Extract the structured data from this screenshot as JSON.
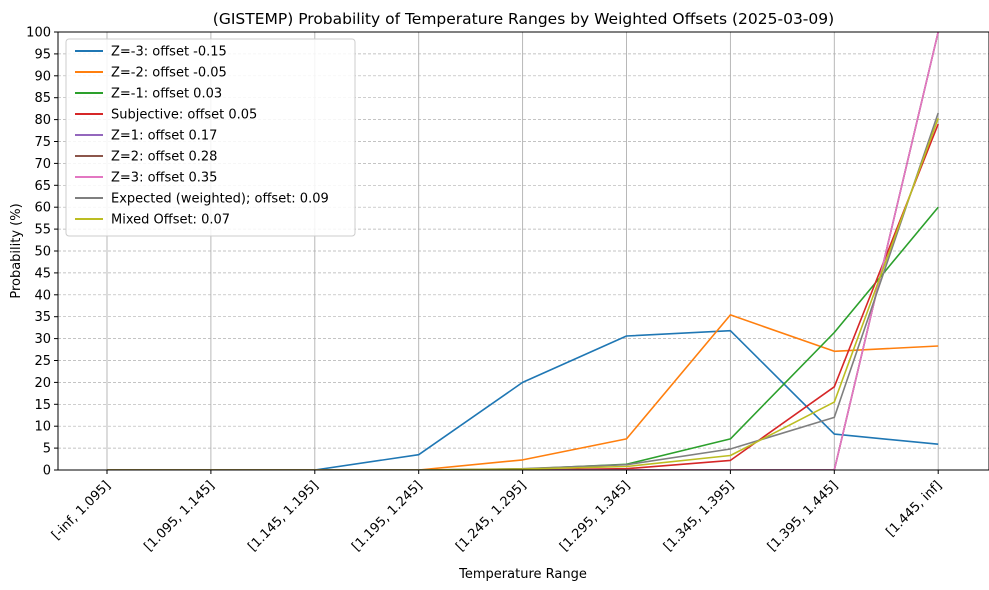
{
  "chart_data": {
    "type": "line",
    "title": "(GISTEMP) Probability of Temperature Ranges by Weighted Offsets (2025-03-09)",
    "xlabel": "Temperature Range",
    "ylabel": "Probability (%)",
    "ylim": [
      0,
      100
    ],
    "yticks": [
      "0",
      "5",
      "10",
      "15",
      "20",
      "25",
      "30",
      "35",
      "40",
      "45",
      "50",
      "55",
      "60",
      "65",
      "70",
      "75",
      "80",
      "85",
      "90",
      "95",
      "100"
    ],
    "categories": [
      "[-inf, 1.095]",
      "[1.095, 1.145]",
      "[1.145, 1.195]",
      "[1.195, 1.245]",
      "[1.245, 1.295]",
      "[1.295, 1.345]",
      "[1.345, 1.395]",
      "[1.395, 1.445]",
      "[1.445, inf]"
    ],
    "grid": "y dashed, x solid",
    "legend_position": "top-left",
    "series": [
      {
        "name": "Z=-3: offset -0.15",
        "color": "#1f77b4",
        "values": [
          0,
          0,
          0,
          3.5,
          20,
          30.6,
          31.8,
          8.2,
          5.9
        ]
      },
      {
        "name": "Z=-2: offset -0.05",
        "color": "#ff7f0e",
        "values": [
          0,
          0,
          0,
          0,
          2.3,
          7.1,
          35.4,
          27.1,
          28.3
        ]
      },
      {
        "name": "Z=-1: offset 0.03",
        "color": "#2ca02c",
        "values": [
          0,
          0,
          0,
          0,
          0.2,
          1.3,
          7.1,
          31.4,
          60
        ]
      },
      {
        "name": "Subjective: offset 0.05",
        "color": "#d62728",
        "values": [
          0,
          0,
          0,
          0,
          0,
          0.3,
          2.2,
          19,
          79
        ]
      },
      {
        "name": "Z=1: offset 0.17",
        "color": "#9467bd",
        "values": [
          0,
          0,
          0,
          0,
          0,
          0,
          0,
          0,
          100
        ]
      },
      {
        "name": "Z=2: offset 0.28",
        "color": "#8c564b",
        "values": [
          0,
          0,
          0,
          0,
          0,
          0,
          0,
          0,
          100
        ]
      },
      {
        "name": "Z=3: offset 0.35",
        "color": "#e377c2",
        "values": [
          0,
          0,
          0,
          0,
          0,
          0,
          0,
          0,
          100
        ]
      },
      {
        "name": "Expected (weighted); offset: 0.09",
        "color": "#7f7f7f",
        "values": [
          0,
          0,
          0,
          0,
          0.3,
          1.2,
          4.8,
          12,
          81.5
        ]
      },
      {
        "name": "Mixed Offset: 0.07",
        "color": "#bcbd22",
        "values": [
          0,
          0,
          0,
          0,
          0.2,
          0.8,
          3.3,
          15.5,
          80.3
        ]
      }
    ]
  }
}
